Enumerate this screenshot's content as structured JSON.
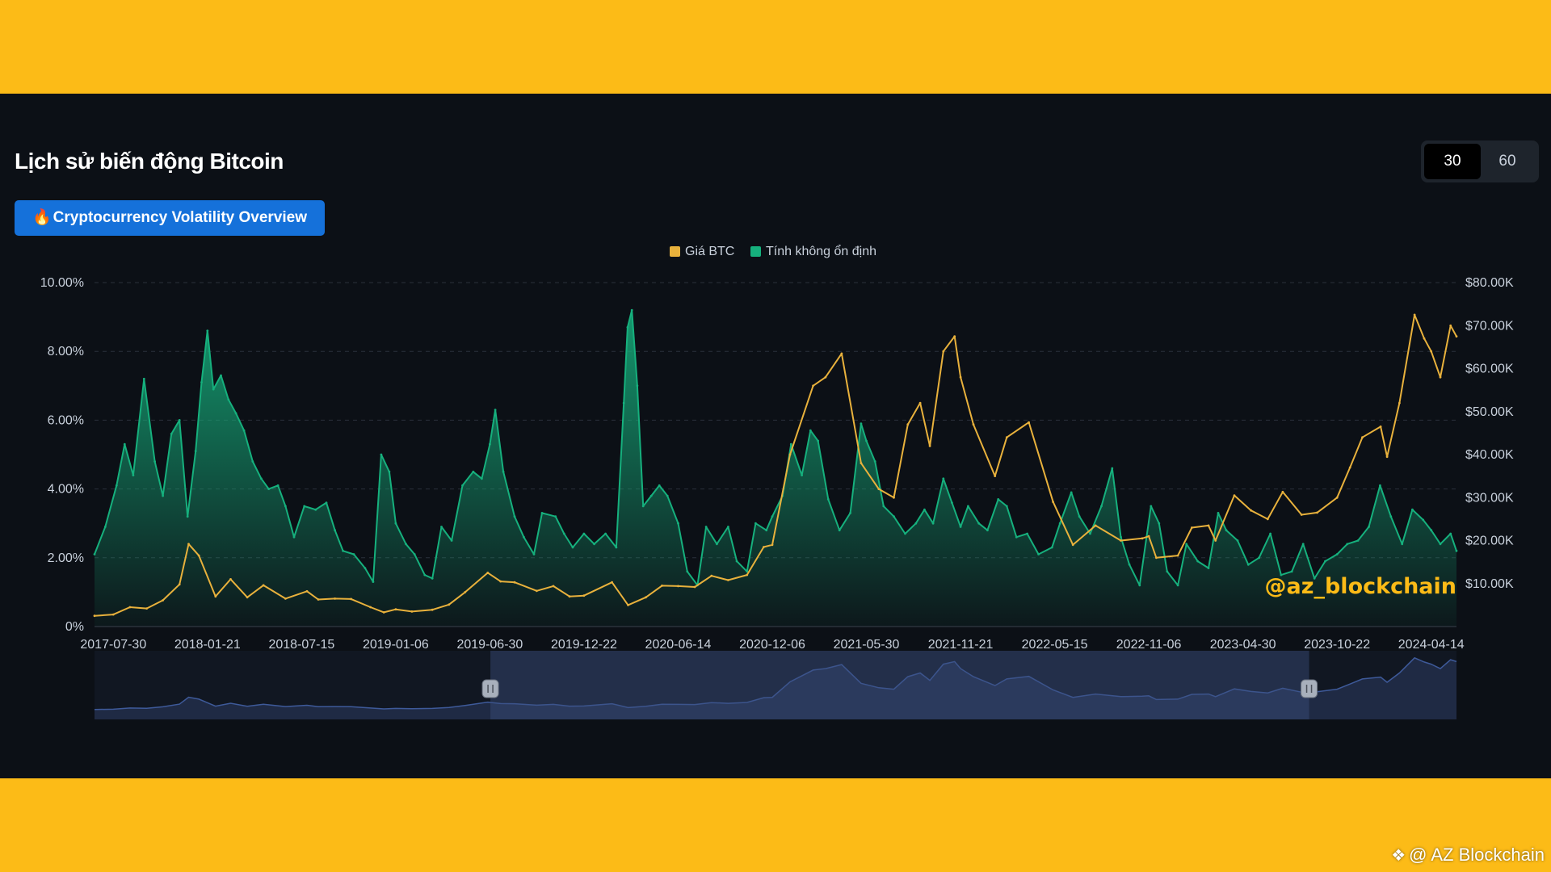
{
  "header": {
    "title": "Lịch sử biến động Bitcoin",
    "badge_icon": "fire-icon",
    "badge_label": "Cryptocurrency Volatility Overview",
    "period_options": [
      "30",
      "60"
    ],
    "period_selected": "30"
  },
  "watermarks": {
    "chart": "@az_blockchain",
    "corner": "@ AZ Blockchain",
    "corner_icon": "binance-diamond-icon"
  },
  "colors": {
    "background": "#FCBB17",
    "panel": "#0C1016",
    "price": "#E8B13C",
    "volatility": "#16B07D",
    "badge": "#1571DA",
    "watermark": "#FCBB17"
  },
  "chart_data": {
    "type": "line",
    "legend": [
      "Giá BTC",
      "Tính không ổn định"
    ],
    "legend_position": "top-center",
    "grid": true,
    "x_tick_labels": [
      "2017-07-30",
      "2018-01-21",
      "2018-07-15",
      "2019-01-06",
      "2019-06-30",
      "2019-12-22",
      "2020-06-14",
      "2020-12-06",
      "2021-05-30",
      "2021-11-21",
      "2022-05-15",
      "2022-11-06",
      "2023-04-30",
      "2023-10-22",
      "2024-04-14"
    ],
    "y_left": {
      "ticks": [
        "0%",
        "2.00%",
        "4.00%",
        "6.00%",
        "8.00%",
        "10.00%"
      ],
      "min": 0,
      "max": 10
    },
    "y_right": {
      "ticks": [
        "$10.00K",
        "$20.00K",
        "$30.00K",
        "$40.00K",
        "$50.00K",
        "$60.00K",
        "$70.00K",
        "$80.00K"
      ],
      "min": 0,
      "max": 80000
    },
    "x_range": [
      "2017-06-25",
      "2024-05-31"
    ],
    "series": [
      {
        "name": "Tính không ổn định",
        "axis": "left",
        "style": "area",
        "points": [
          [
            "2017-06-25",
            2.1
          ],
          [
            "2017-07-15",
            2.9
          ],
          [
            "2017-08-05",
            4.1
          ],
          [
            "2017-08-20",
            5.3
          ],
          [
            "2017-09-05",
            4.4
          ],
          [
            "2017-09-25",
            7.2
          ],
          [
            "2017-10-15",
            4.8
          ],
          [
            "2017-10-30",
            3.8
          ],
          [
            "2017-11-15",
            5.6
          ],
          [
            "2017-11-30",
            6.0
          ],
          [
            "2017-12-15",
            3.2
          ],
          [
            "2017-12-30",
            5.1
          ],
          [
            "2018-01-10",
            7.1
          ],
          [
            "2018-01-21",
            8.6
          ],
          [
            "2018-02-01",
            6.9
          ],
          [
            "2018-02-15",
            7.3
          ],
          [
            "2018-03-01",
            6.6
          ],
          [
            "2018-03-15",
            6.2
          ],
          [
            "2018-03-30",
            5.7
          ],
          [
            "2018-04-15",
            4.8
          ],
          [
            "2018-05-01",
            4.3
          ],
          [
            "2018-05-15",
            4.0
          ],
          [
            "2018-06-01",
            4.1
          ],
          [
            "2018-06-15",
            3.5
          ],
          [
            "2018-07-01",
            2.6
          ],
          [
            "2018-07-20",
            3.5
          ],
          [
            "2018-08-10",
            3.4
          ],
          [
            "2018-08-30",
            3.6
          ],
          [
            "2018-09-15",
            2.8
          ],
          [
            "2018-09-30",
            2.2
          ],
          [
            "2018-10-20",
            2.1
          ],
          [
            "2018-11-10",
            1.7
          ],
          [
            "2018-11-25",
            1.3
          ],
          [
            "2018-12-10",
            5.0
          ],
          [
            "2018-12-25",
            4.5
          ],
          [
            "2019-01-06",
            3.0
          ],
          [
            "2019-01-25",
            2.4
          ],
          [
            "2019-02-10",
            2.1
          ],
          [
            "2019-03-01",
            1.5
          ],
          [
            "2019-03-15",
            1.4
          ],
          [
            "2019-04-01",
            2.9
          ],
          [
            "2019-04-20",
            2.5
          ],
          [
            "2019-05-10",
            4.1
          ],
          [
            "2019-05-30",
            4.5
          ],
          [
            "2019-06-15",
            4.3
          ],
          [
            "2019-06-30",
            5.3
          ],
          [
            "2019-07-10",
            6.3
          ],
          [
            "2019-07-25",
            4.5
          ],
          [
            "2019-08-15",
            3.2
          ],
          [
            "2019-09-01",
            2.6
          ],
          [
            "2019-09-20",
            2.1
          ],
          [
            "2019-10-05",
            3.3
          ],
          [
            "2019-10-30",
            3.2
          ],
          [
            "2019-11-15",
            2.7
          ],
          [
            "2019-12-01",
            2.3
          ],
          [
            "2019-12-22",
            2.7
          ],
          [
            "2020-01-10",
            2.4
          ],
          [
            "2020-01-31",
            2.7
          ],
          [
            "2020-02-20",
            2.3
          ],
          [
            "2020-03-05",
            6.5
          ],
          [
            "2020-03-12",
            8.7
          ],
          [
            "2020-03-20",
            9.2
          ],
          [
            "2020-03-30",
            7.0
          ],
          [
            "2020-04-10",
            3.5
          ],
          [
            "2020-04-25",
            3.8
          ],
          [
            "2020-05-10",
            4.1
          ],
          [
            "2020-05-25",
            3.8
          ],
          [
            "2020-06-14",
            3.0
          ],
          [
            "2020-07-01",
            1.6
          ],
          [
            "2020-07-20",
            1.2
          ],
          [
            "2020-08-05",
            2.9
          ],
          [
            "2020-08-25",
            2.4
          ],
          [
            "2020-09-15",
            2.9
          ],
          [
            "2020-10-01",
            1.9
          ],
          [
            "2020-10-20",
            1.6
          ],
          [
            "2020-11-05",
            3.0
          ],
          [
            "2020-11-25",
            2.8
          ],
          [
            "2020-12-06",
            3.2
          ],
          [
            "2020-12-25",
            3.8
          ],
          [
            "2021-01-10",
            5.3
          ],
          [
            "2021-01-30",
            4.4
          ],
          [
            "2021-02-15",
            5.7
          ],
          [
            "2021-03-01",
            5.4
          ],
          [
            "2021-03-20",
            3.7
          ],
          [
            "2021-04-10",
            2.8
          ],
          [
            "2021-04-30",
            3.3
          ],
          [
            "2021-05-20",
            5.9
          ],
          [
            "2021-05-30",
            5.4
          ],
          [
            "2021-06-15",
            4.8
          ],
          [
            "2021-07-01",
            3.5
          ],
          [
            "2021-07-20",
            3.2
          ],
          [
            "2021-08-10",
            2.7
          ],
          [
            "2021-08-30",
            3.0
          ],
          [
            "2021-09-15",
            3.4
          ],
          [
            "2021-10-01",
            3.0
          ],
          [
            "2021-10-20",
            4.3
          ],
          [
            "2021-11-05",
            3.6
          ],
          [
            "2021-11-21",
            2.9
          ],
          [
            "2021-12-05",
            3.5
          ],
          [
            "2021-12-25",
            3.0
          ],
          [
            "2022-01-10",
            2.8
          ],
          [
            "2022-01-30",
            3.7
          ],
          [
            "2022-02-15",
            3.5
          ],
          [
            "2022-03-05",
            2.6
          ],
          [
            "2022-03-25",
            2.7
          ],
          [
            "2022-04-15",
            2.1
          ],
          [
            "2022-05-10",
            2.3
          ],
          [
            "2022-05-25",
            3.0
          ],
          [
            "2022-06-15",
            3.9
          ],
          [
            "2022-06-30",
            3.2
          ],
          [
            "2022-07-20",
            2.7
          ],
          [
            "2022-08-10",
            3.5
          ],
          [
            "2022-08-30",
            4.6
          ],
          [
            "2022-09-15",
            2.6
          ],
          [
            "2022-10-01",
            1.8
          ],
          [
            "2022-10-20",
            1.2
          ],
          [
            "2022-11-10",
            3.5
          ],
          [
            "2022-11-25",
            3.0
          ],
          [
            "2022-12-10",
            1.6
          ],
          [
            "2022-12-30",
            1.2
          ],
          [
            "2023-01-15",
            2.4
          ],
          [
            "2023-02-05",
            1.9
          ],
          [
            "2023-02-25",
            1.7
          ],
          [
            "2023-03-15",
            3.3
          ],
          [
            "2023-03-30",
            2.8
          ],
          [
            "2023-04-20",
            2.5
          ],
          [
            "2023-05-10",
            1.8
          ],
          [
            "2023-05-30",
            2.0
          ],
          [
            "2023-06-20",
            2.7
          ],
          [
            "2023-07-10",
            1.5
          ],
          [
            "2023-07-30",
            1.6
          ],
          [
            "2023-08-20",
            2.4
          ],
          [
            "2023-09-10",
            1.4
          ],
          [
            "2023-09-30",
            1.9
          ],
          [
            "2023-10-22",
            2.1
          ],
          [
            "2023-11-10",
            2.4
          ],
          [
            "2023-11-30",
            2.5
          ],
          [
            "2023-12-20",
            2.9
          ],
          [
            "2024-01-10",
            4.1
          ],
          [
            "2024-01-30",
            3.2
          ],
          [
            "2024-02-20",
            2.4
          ],
          [
            "2024-03-10",
            3.4
          ],
          [
            "2024-03-30",
            3.1
          ],
          [
            "2024-04-14",
            2.8
          ],
          [
            "2024-05-01",
            2.4
          ],
          [
            "2024-05-20",
            2.7
          ],
          [
            "2024-05-31",
            2.2
          ]
        ]
      },
      {
        "name": "Giá BTC",
        "axis": "right",
        "style": "line",
        "points": [
          [
            "2017-06-25",
            2500
          ],
          [
            "2017-07-30",
            2800
          ],
          [
            "2017-08-30",
            4500
          ],
          [
            "2017-09-30",
            4200
          ],
          [
            "2017-10-30",
            6100
          ],
          [
            "2017-11-30",
            9800
          ],
          [
            "2017-12-17",
            19200
          ],
          [
            "2018-01-05",
            16500
          ],
          [
            "2018-02-05",
            7000
          ],
          [
            "2018-03-05",
            11000
          ],
          [
            "2018-04-05",
            6800
          ],
          [
            "2018-05-05",
            9600
          ],
          [
            "2018-06-15",
            6500
          ],
          [
            "2018-07-25",
            8200
          ],
          [
            "2018-08-15",
            6300
          ],
          [
            "2018-09-15",
            6500
          ],
          [
            "2018-10-15",
            6400
          ],
          [
            "2018-11-20",
            4500
          ],
          [
            "2018-12-15",
            3300
          ],
          [
            "2019-01-06",
            4000
          ],
          [
            "2019-02-05",
            3500
          ],
          [
            "2019-03-15",
            3900
          ],
          [
            "2019-04-15",
            5100
          ],
          [
            "2019-05-15",
            8000
          ],
          [
            "2019-06-26",
            12500
          ],
          [
            "2019-07-20",
            10500
          ],
          [
            "2019-08-15",
            10300
          ],
          [
            "2019-09-25",
            8300
          ],
          [
            "2019-10-26",
            9400
          ],
          [
            "2019-11-25",
            7000
          ],
          [
            "2019-12-22",
            7200
          ],
          [
            "2020-02-12",
            10300
          ],
          [
            "2020-03-13",
            5000
          ],
          [
            "2020-04-15",
            6800
          ],
          [
            "2020-05-15",
            9500
          ],
          [
            "2020-06-14",
            9400
          ],
          [
            "2020-07-15",
            9200
          ],
          [
            "2020-08-15",
            11800
          ],
          [
            "2020-09-15",
            10800
          ],
          [
            "2020-10-20",
            12000
          ],
          [
            "2020-11-20",
            18500
          ],
          [
            "2020-12-06",
            19000
          ],
          [
            "2021-01-08",
            40000
          ],
          [
            "2021-02-20",
            56000
          ],
          [
            "2021-03-15",
            58000
          ],
          [
            "2021-04-14",
            63500
          ],
          [
            "2021-05-20",
            38000
          ],
          [
            "2021-06-22",
            32000
          ],
          [
            "2021-07-20",
            30000
          ],
          [
            "2021-08-15",
            47000
          ],
          [
            "2021-09-07",
            52000
          ],
          [
            "2021-09-25",
            42000
          ],
          [
            "2021-10-20",
            64000
          ],
          [
            "2021-11-10",
            67500
          ],
          [
            "2021-11-21",
            58000
          ],
          [
            "2021-12-15",
            47000
          ],
          [
            "2022-01-24",
            35000
          ],
          [
            "2022-02-15",
            44000
          ],
          [
            "2022-03-28",
            47500
          ],
          [
            "2022-05-12",
            29000
          ],
          [
            "2022-06-18",
            19000
          ],
          [
            "2022-07-30",
            23500
          ],
          [
            "2022-09-15",
            20000
          ],
          [
            "2022-10-25",
            20500
          ],
          [
            "2022-11-06",
            21000
          ],
          [
            "2022-11-20",
            16000
          ],
          [
            "2022-12-30",
            16500
          ],
          [
            "2023-01-25",
            23000
          ],
          [
            "2023-02-25",
            23500
          ],
          [
            "2023-03-10",
            20000
          ],
          [
            "2023-04-14",
            30500
          ],
          [
            "2023-05-15",
            27000
          ],
          [
            "2023-06-15",
            25000
          ],
          [
            "2023-07-13",
            31300
          ],
          [
            "2023-08-17",
            26000
          ],
          [
            "2023-09-15",
            26500
          ],
          [
            "2023-10-22",
            30000
          ],
          [
            "2023-11-15",
            37000
          ],
          [
            "2023-12-08",
            44000
          ],
          [
            "2024-01-11",
            46500
          ],
          [
            "2024-01-23",
            39500
          ],
          [
            "2024-02-15",
            52000
          ],
          [
            "2024-03-14",
            72500
          ],
          [
            "2024-04-01",
            67000
          ],
          [
            "2024-04-14",
            64000
          ],
          [
            "2024-05-01",
            58000
          ],
          [
            "2024-05-20",
            70000
          ],
          [
            "2024-05-31",
            67500
          ]
        ]
      }
    ],
    "zoom_window": [
      "2019-07-01",
      "2023-08-31"
    ]
  }
}
